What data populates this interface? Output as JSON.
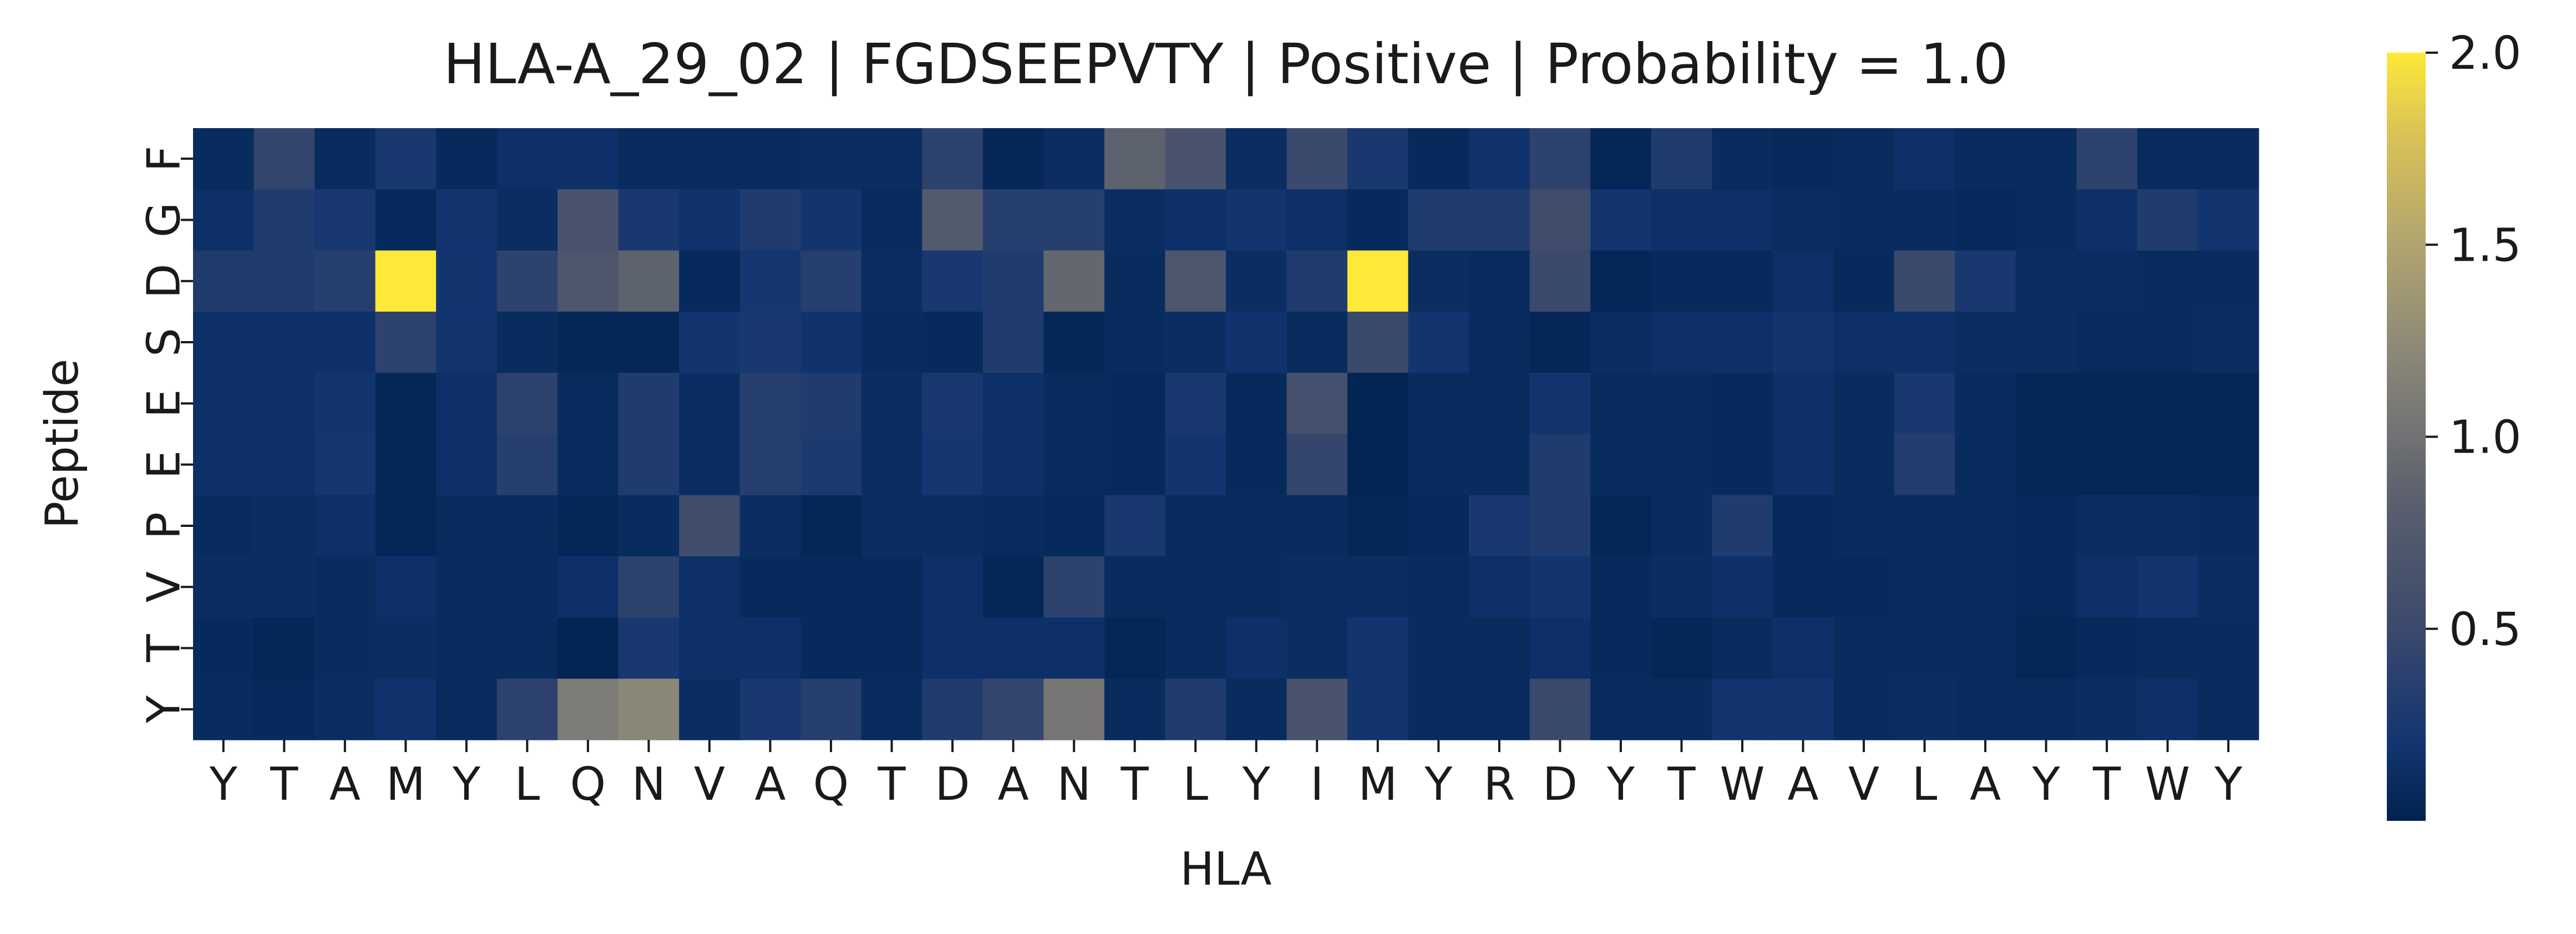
{
  "chart_data": {
    "type": "heatmap",
    "title": "HLA-A_29_02 | FGDSEEPVTY | Positive | Probability = 1.0",
    "xlabel": "HLA",
    "ylabel": "Peptide",
    "x_categories": [
      "Y",
      "T",
      "A",
      "M",
      "Y",
      "L",
      "Q",
      "N",
      "V",
      "A",
      "Q",
      "T",
      "D",
      "A",
      "N",
      "T",
      "L",
      "Y",
      "I",
      "M",
      "Y",
      "R",
      "D",
      "Y",
      "T",
      "W",
      "A",
      "V",
      "L",
      "A",
      "Y",
      "T",
      "W",
      "Y"
    ],
    "y_categories": [
      "F",
      "G",
      "D",
      "S",
      "E",
      "E",
      "P",
      "V",
      "T",
      "Y"
    ],
    "colormap": "cividis",
    "vmin": 0.0,
    "vmax": 2.0,
    "colorbar_ticks": [
      0.5,
      1.0,
      1.5,
      2.0
    ],
    "colorbar_tick_labels": [
      "0.5",
      "1.0",
      "1.5",
      "2.0"
    ],
    "values": [
      [
        0.1,
        0.45,
        0.1,
        0.25,
        0.08,
        0.15,
        0.15,
        0.1,
        0.1,
        0.1,
        0.12,
        0.12,
        0.4,
        0.05,
        0.12,
        0.85,
        0.65,
        0.12,
        0.5,
        0.25,
        0.08,
        0.18,
        0.4,
        0.05,
        0.3,
        0.1,
        0.08,
        0.1,
        0.15,
        0.1,
        0.1,
        0.4,
        0.1,
        0.1
      ],
      [
        0.15,
        0.3,
        0.25,
        0.08,
        0.2,
        0.12,
        0.65,
        0.25,
        0.18,
        0.3,
        0.2,
        0.1,
        0.75,
        0.35,
        0.35,
        0.12,
        0.15,
        0.2,
        0.15,
        0.08,
        0.3,
        0.3,
        0.55,
        0.2,
        0.15,
        0.15,
        0.12,
        0.1,
        0.1,
        0.08,
        0.1,
        0.15,
        0.3,
        0.2
      ],
      [
        0.3,
        0.3,
        0.35,
        2.0,
        0.2,
        0.4,
        0.7,
        0.85,
        0.08,
        0.22,
        0.35,
        0.12,
        0.25,
        0.3,
        0.9,
        0.1,
        0.7,
        0.12,
        0.3,
        2.0,
        0.12,
        0.1,
        0.5,
        0.05,
        0.08,
        0.08,
        0.15,
        0.08,
        0.5,
        0.25,
        0.12,
        0.12,
        0.1,
        0.1
      ],
      [
        0.15,
        0.15,
        0.15,
        0.4,
        0.2,
        0.1,
        0.05,
        0.05,
        0.2,
        0.25,
        0.18,
        0.1,
        0.08,
        0.3,
        0.05,
        0.1,
        0.12,
        0.18,
        0.1,
        0.5,
        0.2,
        0.1,
        0.05,
        0.12,
        0.15,
        0.15,
        0.2,
        0.15,
        0.15,
        0.12,
        0.12,
        0.1,
        0.1,
        0.12
      ],
      [
        0.15,
        0.15,
        0.2,
        0.05,
        0.15,
        0.4,
        0.1,
        0.3,
        0.12,
        0.35,
        0.3,
        0.12,
        0.25,
        0.15,
        0.1,
        0.08,
        0.25,
        0.08,
        0.6,
        0.03,
        0.1,
        0.1,
        0.2,
        0.1,
        0.1,
        0.08,
        0.15,
        0.1,
        0.25,
        0.1,
        0.05,
        0.05,
        0.05,
        0.05
      ],
      [
        0.15,
        0.15,
        0.22,
        0.05,
        0.15,
        0.35,
        0.1,
        0.3,
        0.12,
        0.35,
        0.28,
        0.12,
        0.22,
        0.15,
        0.1,
        0.08,
        0.2,
        0.08,
        0.45,
        0.03,
        0.1,
        0.1,
        0.3,
        0.1,
        0.1,
        0.08,
        0.15,
        0.1,
        0.32,
        0.1,
        0.05,
        0.05,
        0.05,
        0.05
      ],
      [
        0.1,
        0.12,
        0.15,
        0.05,
        0.1,
        0.1,
        0.05,
        0.1,
        0.55,
        0.12,
        0.05,
        0.12,
        0.12,
        0.1,
        0.08,
        0.25,
        0.1,
        0.1,
        0.1,
        0.05,
        0.08,
        0.25,
        0.3,
        0.05,
        0.1,
        0.3,
        0.08,
        0.1,
        0.1,
        0.1,
        0.08,
        0.12,
        0.12,
        0.1
      ],
      [
        0.12,
        0.12,
        0.1,
        0.15,
        0.1,
        0.1,
        0.15,
        0.4,
        0.15,
        0.08,
        0.08,
        0.08,
        0.15,
        0.05,
        0.4,
        0.1,
        0.1,
        0.1,
        0.12,
        0.12,
        0.1,
        0.15,
        0.2,
        0.08,
        0.12,
        0.15,
        0.08,
        0.08,
        0.1,
        0.1,
        0.08,
        0.15,
        0.2,
        0.12
      ],
      [
        0.08,
        0.05,
        0.1,
        0.12,
        0.1,
        0.1,
        0.03,
        0.25,
        0.15,
        0.15,
        0.08,
        0.08,
        0.15,
        0.15,
        0.15,
        0.05,
        0.1,
        0.15,
        0.12,
        0.2,
        0.1,
        0.1,
        0.15,
        0.08,
        0.05,
        0.1,
        0.15,
        0.1,
        0.1,
        0.1,
        0.05,
        0.08,
        0.1,
        0.1
      ],
      [
        0.1,
        0.08,
        0.12,
        0.18,
        0.1,
        0.4,
        1.1,
        1.2,
        0.12,
        0.25,
        0.35,
        0.1,
        0.3,
        0.45,
        1.05,
        0.1,
        0.3,
        0.1,
        0.65,
        0.2,
        0.1,
        0.1,
        0.5,
        0.1,
        0.1,
        0.2,
        0.2,
        0.1,
        0.12,
        0.1,
        0.1,
        0.12,
        0.15,
        0.1
      ]
    ]
  }
}
